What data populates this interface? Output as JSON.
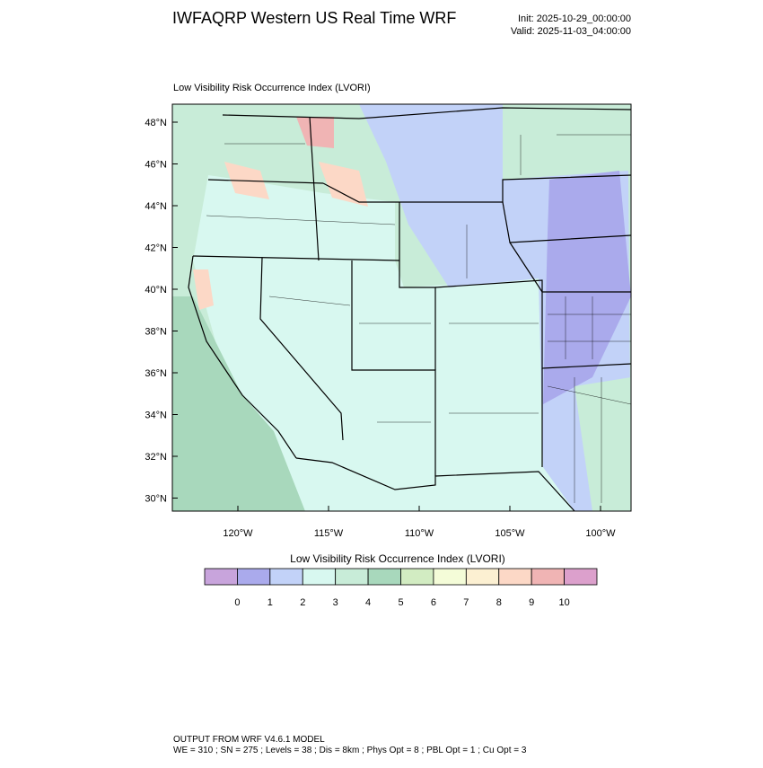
{
  "header": {
    "title": "IWFAQRP Western US Real Time WRF",
    "init": "Init: 2025-10-29_00:00:00",
    "valid": "Valid: 2025-11-03_04:00:00"
  },
  "map": {
    "title": "Low Visibility Risk Occurrence Index   (LVORI)",
    "lat_ticks": [
      "48°N",
      "46°N",
      "44°N",
      "42°N",
      "40°N",
      "38°N",
      "36°N",
      "34°N",
      "32°N",
      "30°N"
    ],
    "lon_ticks": [
      "120°W",
      "115°W",
      "110°W",
      "105°W",
      "100°W"
    ]
  },
  "colorbar": {
    "title": "Low Visibility Risk Occurrence Index  (LVORI)",
    "levels": [
      0,
      1,
      2,
      3,
      4,
      5,
      6,
      7,
      8,
      9,
      10
    ],
    "colors": [
      "#c8a4dc",
      "#aaaaec",
      "#c2d2f8",
      "#d8f8f0",
      "#c8ecd8",
      "#a8d8bc",
      "#d2ecc2",
      "#f4fcd8",
      "#fcf0d2",
      "#fcd8c6",
      "#f0b4b4",
      "#dca0cc"
    ]
  },
  "footer": {
    "line1": "OUTPUT FROM WRF V4.6.1 MODEL",
    "line2": "WE = 310 ; SN = 275 ; Levels = 38 ; Dis = 8km ; Phys Opt = 8 ; PBL Opt = 1 ; Cu Opt = 3"
  }
}
